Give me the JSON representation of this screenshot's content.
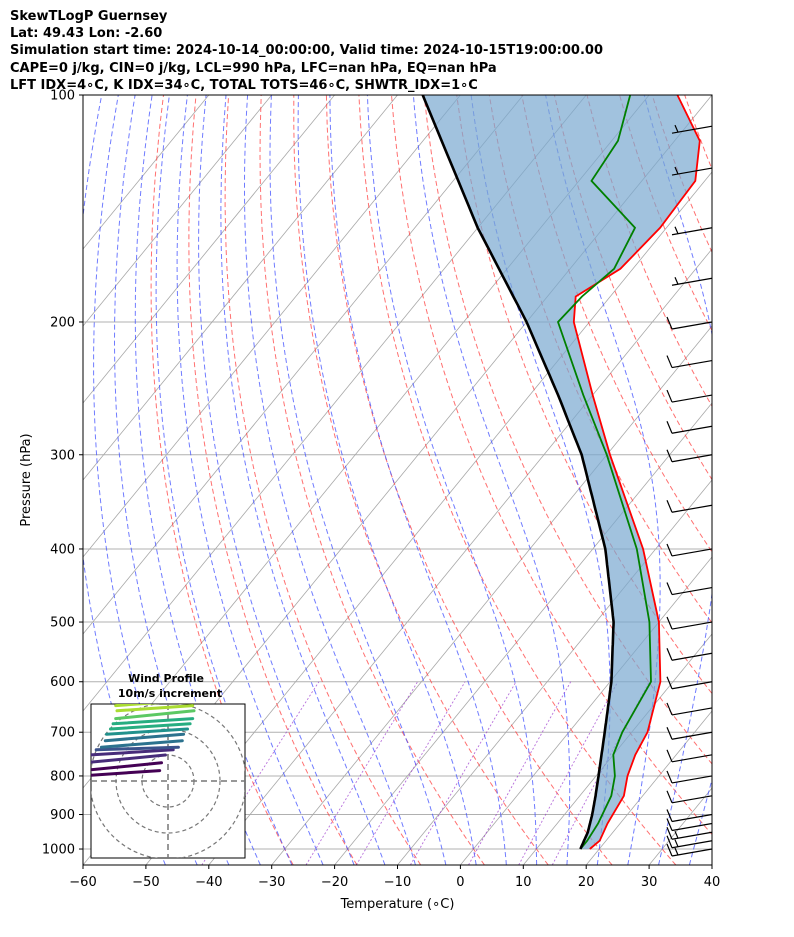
{
  "title_lines": [
    "SkewTLogP Guernsey",
    "Lat: 49.43   Lon: -2.60",
    "Simulation start time: 2024-10-14_00:00:00, Valid time: 2024-10-15T19:00:00.00",
    "CAPE=0 j/kg, CIN=0 j/kg, LCL=990 hPa, LFC=nan hPa, EQ=nan hPa",
    "LFT IDX=4∘C, K IDX=34∘C, TOTAL TOTS=46∘C, SHWTR_IDX=1∘C"
  ],
  "chart_data": {
    "type": "skewt-logp",
    "xlabel": "Temperature (∘C)",
    "ylabel": "Pressure (hPa)",
    "xlim": [
      -60,
      40
    ],
    "ylim": [
      1050,
      100
    ],
    "x_ticks": [
      -60,
      -50,
      -40,
      -30,
      -20,
      -10,
      0,
      10,
      20,
      30,
      40
    ],
    "x_tick_labels": [
      "−60",
      "−50",
      "−40",
      "−30",
      "−20",
      "−10",
      "0",
      "10",
      "20",
      "30",
      "40"
    ],
    "y_ticks": [
      100,
      200,
      300,
      400,
      500,
      600,
      700,
      800,
      900,
      1000
    ],
    "y_tick_labels": [
      "100",
      "200",
      "300",
      "400",
      "500",
      "600",
      "700",
      "800",
      "900",
      "1000"
    ],
    "temperature_profile": [
      [
        1000,
        18.5
      ],
      [
        975,
        19
      ],
      [
        925,
        18
      ],
      [
        850,
        17
      ],
      [
        800,
        15
      ],
      [
        750,
        13.5
      ],
      [
        700,
        12.5
      ],
      [
        600,
        8
      ],
      [
        500,
        0
      ],
      [
        400,
        -12
      ],
      [
        300,
        -29.5
      ],
      [
        250,
        -40
      ],
      [
        200,
        -52.5
      ],
      [
        185,
        -55.5
      ],
      [
        170,
        -52
      ],
      [
        150,
        -51
      ],
      [
        130,
        -51.5
      ],
      [
        115,
        -56
      ],
      [
        100,
        -65.5
      ]
    ],
    "dewpoint_profile": [
      [
        1000,
        17
      ],
      [
        975,
        17
      ],
      [
        925,
        16.5
      ],
      [
        850,
        15
      ],
      [
        800,
        13
      ],
      [
        750,
        10
      ],
      [
        700,
        8.5
      ],
      [
        600,
        6.5
      ],
      [
        500,
        -1.5
      ],
      [
        400,
        -13
      ],
      [
        300,
        -30
      ],
      [
        250,
        -41.5
      ],
      [
        200,
        -55
      ],
      [
        185,
        -54.5
      ],
      [
        170,
        -53
      ],
      [
        150,
        -55
      ],
      [
        130,
        -68
      ],
      [
        115,
        -69
      ],
      [
        100,
        -73
      ]
    ],
    "parcel_profile": [
      [
        1000,
        17
      ],
      [
        950,
        16
      ],
      [
        900,
        14.4
      ],
      [
        850,
        12.5
      ],
      [
        800,
        10.4
      ],
      [
        700,
        5.7
      ],
      [
        600,
        0.2
      ],
      [
        500,
        -7.2
      ],
      [
        400,
        -18
      ],
      [
        300,
        -34
      ],
      [
        250,
        -45.5
      ],
      [
        200,
        -60
      ],
      [
        150,
        -80
      ],
      [
        100,
        -106
      ]
    ],
    "wind_barbs_kt": [
      {
        "p": 1000,
        "speed": 15
      },
      {
        "p": 975,
        "speed": 15
      },
      {
        "p": 950,
        "speed": 15
      },
      {
        "p": 925,
        "speed": 10
      },
      {
        "p": 900,
        "speed": 10
      },
      {
        "p": 850,
        "speed": 10
      },
      {
        "p": 800,
        "speed": 10
      },
      {
        "p": 750,
        "speed": 10
      },
      {
        "p": 700,
        "speed": 10
      },
      {
        "p": 650,
        "speed": 10
      },
      {
        "p": 600,
        "speed": 10
      },
      {
        "p": 550,
        "speed": 10
      },
      {
        "p": 500,
        "speed": 10
      },
      {
        "p": 450,
        "speed": 10
      },
      {
        "p": 400,
        "speed": 10
      },
      {
        "p": 350,
        "speed": 10
      },
      {
        "p": 300,
        "speed": 10
      },
      {
        "p": 275,
        "speed": 10
      },
      {
        "p": 250,
        "speed": 10
      },
      {
        "p": 225,
        "speed": 10
      },
      {
        "p": 200,
        "speed": 10
      },
      {
        "p": 175,
        "speed": 5
      },
      {
        "p": 150,
        "speed": 5
      },
      {
        "p": 125,
        "speed": 5
      },
      {
        "p": 110,
        "speed": 5
      }
    ],
    "hodograph": {
      "title": "Wind Profile",
      "subtitle": "10m/s increment",
      "rings_ms": [
        10,
        20,
        30
      ],
      "points_ms": [
        [
          -3.5,
          2
        ],
        [
          -3.2,
          4
        ],
        [
          -2.5,
          7
        ],
        [
          -1,
          10
        ],
        [
          2,
          12
        ],
        [
          4,
          13
        ],
        [
          5.5,
          15.5
        ],
        [
          6,
          18
        ],
        [
          7.5,
          20
        ],
        [
          8.5,
          22
        ],
        [
          9.5,
          24
        ],
        [
          10,
          27
        ],
        [
          9.5,
          29
        ],
        [
          8,
          31
        ],
        [
          7.5,
          35
        ]
      ],
      "colormap": "viridis"
    }
  }
}
